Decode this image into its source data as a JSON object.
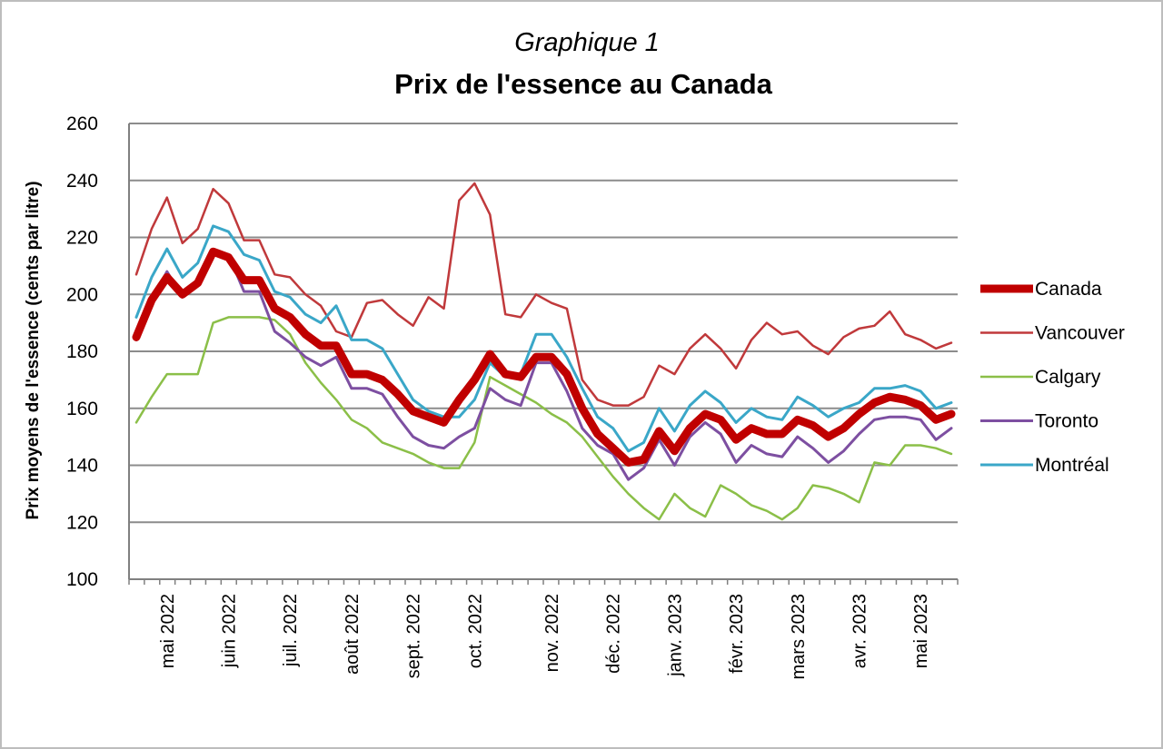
{
  "chart_data": {
    "type": "line",
    "title": "Prix de l'essence au Canada",
    "subtitle": "Graphique 1",
    "xlabel": "",
    "ylabel": "Prix moyens de l'essence (cents par litre)",
    "ylim": [
      100,
      260
    ],
    "yticks": [
      100,
      120,
      140,
      160,
      180,
      200,
      220,
      240,
      260
    ],
    "grid": true,
    "legend_position": "right",
    "x_tick_labels": [
      {
        "label": "mai 2022",
        "index": 2
      },
      {
        "label": "juin 2022",
        "index": 6
      },
      {
        "label": "juil. 2022",
        "index": 10
      },
      {
        "label": "août 2022",
        "index": 14
      },
      {
        "label": "sept. 2022",
        "index": 18
      },
      {
        "label": "oct. 2022",
        "index": 22
      },
      {
        "label": "nov. 2022",
        "index": 27
      },
      {
        "label": "déc. 2022",
        "index": 31
      },
      {
        "label": "janv. 2023",
        "index": 35
      },
      {
        "label": "févr. 2023",
        "index": 39
      },
      {
        "label": "mars 2023",
        "index": 43
      },
      {
        "label": "avr. 2023",
        "index": 47
      },
      {
        "label": "mai 2023",
        "index": 51
      }
    ],
    "series": [
      {
        "name": "Vancouver",
        "color": "#c0393b",
        "width": 2.5,
        "values": [
          207,
          223,
          234,
          218,
          223,
          237,
          232,
          219,
          219,
          207,
          206,
          200,
          196,
          187,
          185,
          197,
          198,
          193,
          189,
          199,
          195,
          233,
          239,
          228,
          193,
          192,
          200,
          197,
          195,
          170,
          163,
          161,
          161,
          164,
          175,
          172,
          181,
          186,
          181,
          174,
          184,
          190,
          186,
          187,
          182,
          179,
          185,
          188,
          189,
          194,
          186,
          184,
          181,
          183
        ]
      },
      {
        "name": "Calgary",
        "color": "#8bbf48",
        "width": 2.5,
        "values": [
          155,
          164,
          172,
          172,
          172,
          190,
          192,
          192,
          192,
          191,
          186,
          176,
          169,
          163,
          156,
          153,
          148,
          146,
          144,
          141,
          139,
          139,
          148,
          171,
          168,
          165,
          162,
          158,
          155,
          150,
          143,
          136,
          130,
          125,
          121,
          130,
          125,
          122,
          133,
          130,
          126,
          124,
          121,
          125,
          133,
          132,
          130,
          127,
          141,
          140,
          147,
          147,
          146,
          144
        ]
      },
      {
        "name": "Toronto",
        "color": "#7d4fa1",
        "width": 3,
        "values": [
          184,
          198,
          208,
          199,
          203,
          215,
          214,
          201,
          201,
          187,
          183,
          178,
          175,
          178,
          167,
          167,
          165,
          157,
          150,
          147,
          146,
          150,
          153,
          167,
          163,
          161,
          176,
          176,
          166,
          153,
          147,
          144,
          135,
          139,
          149,
          140,
          150,
          155,
          151,
          141,
          147,
          144,
          143,
          150,
          146,
          141,
          145,
          151,
          156,
          157,
          157,
          156,
          149,
          153
        ]
      },
      {
        "name": "Montréal",
        "color": "#3aa7c8",
        "width": 3,
        "values": [
          192,
          206,
          216,
          206,
          211,
          224,
          222,
          214,
          212,
          201,
          199,
          193,
          190,
          196,
          184,
          184,
          181,
          172,
          163,
          159,
          157,
          157,
          163,
          176,
          171,
          172,
          186,
          186,
          178,
          167,
          157,
          153,
          145,
          148,
          160,
          152,
          161,
          166,
          162,
          155,
          160,
          157,
          156,
          164,
          161,
          157,
          160,
          162,
          167,
          167,
          168,
          166,
          160,
          162
        ]
      },
      {
        "name": "Canada",
        "color": "#c00000",
        "width": 9,
        "values": [
          185,
          198,
          206,
          200,
          204,
          215,
          213,
          205,
          205,
          195,
          192,
          186,
          182,
          182,
          172,
          172,
          170,
          165,
          159,
          157,
          155,
          163,
          170,
          179,
          172,
          171,
          178,
          178,
          172,
          160,
          151,
          146,
          141,
          142,
          152,
          145,
          153,
          158,
          156,
          149,
          153,
          151,
          151,
          156,
          154,
          150,
          153,
          158,
          162,
          164,
          163,
          161,
          156,
          158
        ]
      }
    ],
    "legend_order": [
      "Canada",
      "Vancouver",
      "Calgary",
      "Toronto",
      "Montréal"
    ]
  }
}
